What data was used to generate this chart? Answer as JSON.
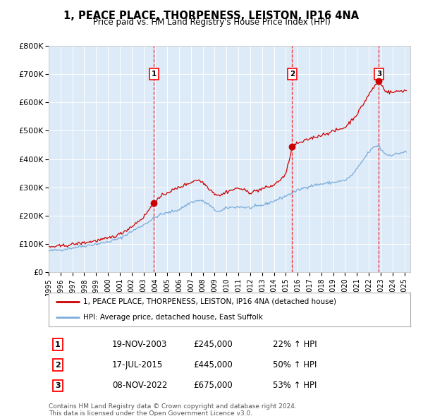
{
  "title": "1, PEACE PLACE, THORPENESS, LEISTON, IP16 4NA",
  "subtitle": "Price paid vs. HM Land Registry's House Price Index (HPI)",
  "hpi_color": "#7aacdc",
  "property_color": "#cc0000",
  "background_color": "#ddeaf7",
  "sale_prices": [
    245000,
    445000,
    675000
  ],
  "sale_labels": [
    "1",
    "2",
    "3"
  ],
  "sale_date_decimals": [
    2003.879,
    2015.538,
    2022.854
  ],
  "sale_info": [
    {
      "label": "1",
      "date": "19-NOV-2003",
      "price": "£245,000",
      "pct": "22% ↑ HPI"
    },
    {
      "label": "2",
      "date": "17-JUL-2015",
      "price": "£445,000",
      "pct": "50% ↑ HPI"
    },
    {
      "label": "3",
      "date": "08-NOV-2022",
      "price": "£675,000",
      "pct": "53% ↑ HPI"
    }
  ],
  "legend_property": "1, PEACE PLACE, THORPENESS, LEISTON, IP16 4NA (detached house)",
  "legend_hpi": "HPI: Average price, detached house, East Suffolk",
  "footer": "Contains HM Land Registry data © Crown copyright and database right 2024.\nThis data is licensed under the Open Government Licence v3.0.",
  "ylim": [
    0,
    800000
  ],
  "yticks": [
    0,
    100000,
    200000,
    300000,
    400000,
    500000,
    600000,
    700000,
    800000
  ],
  "ytick_labels": [
    "£0",
    "£100K",
    "£200K",
    "£300K",
    "£400K",
    "£500K",
    "£600K",
    "£700K",
    "£800K"
  ],
  "xlim_left": 1995.0,
  "xlim_right": 2025.5
}
